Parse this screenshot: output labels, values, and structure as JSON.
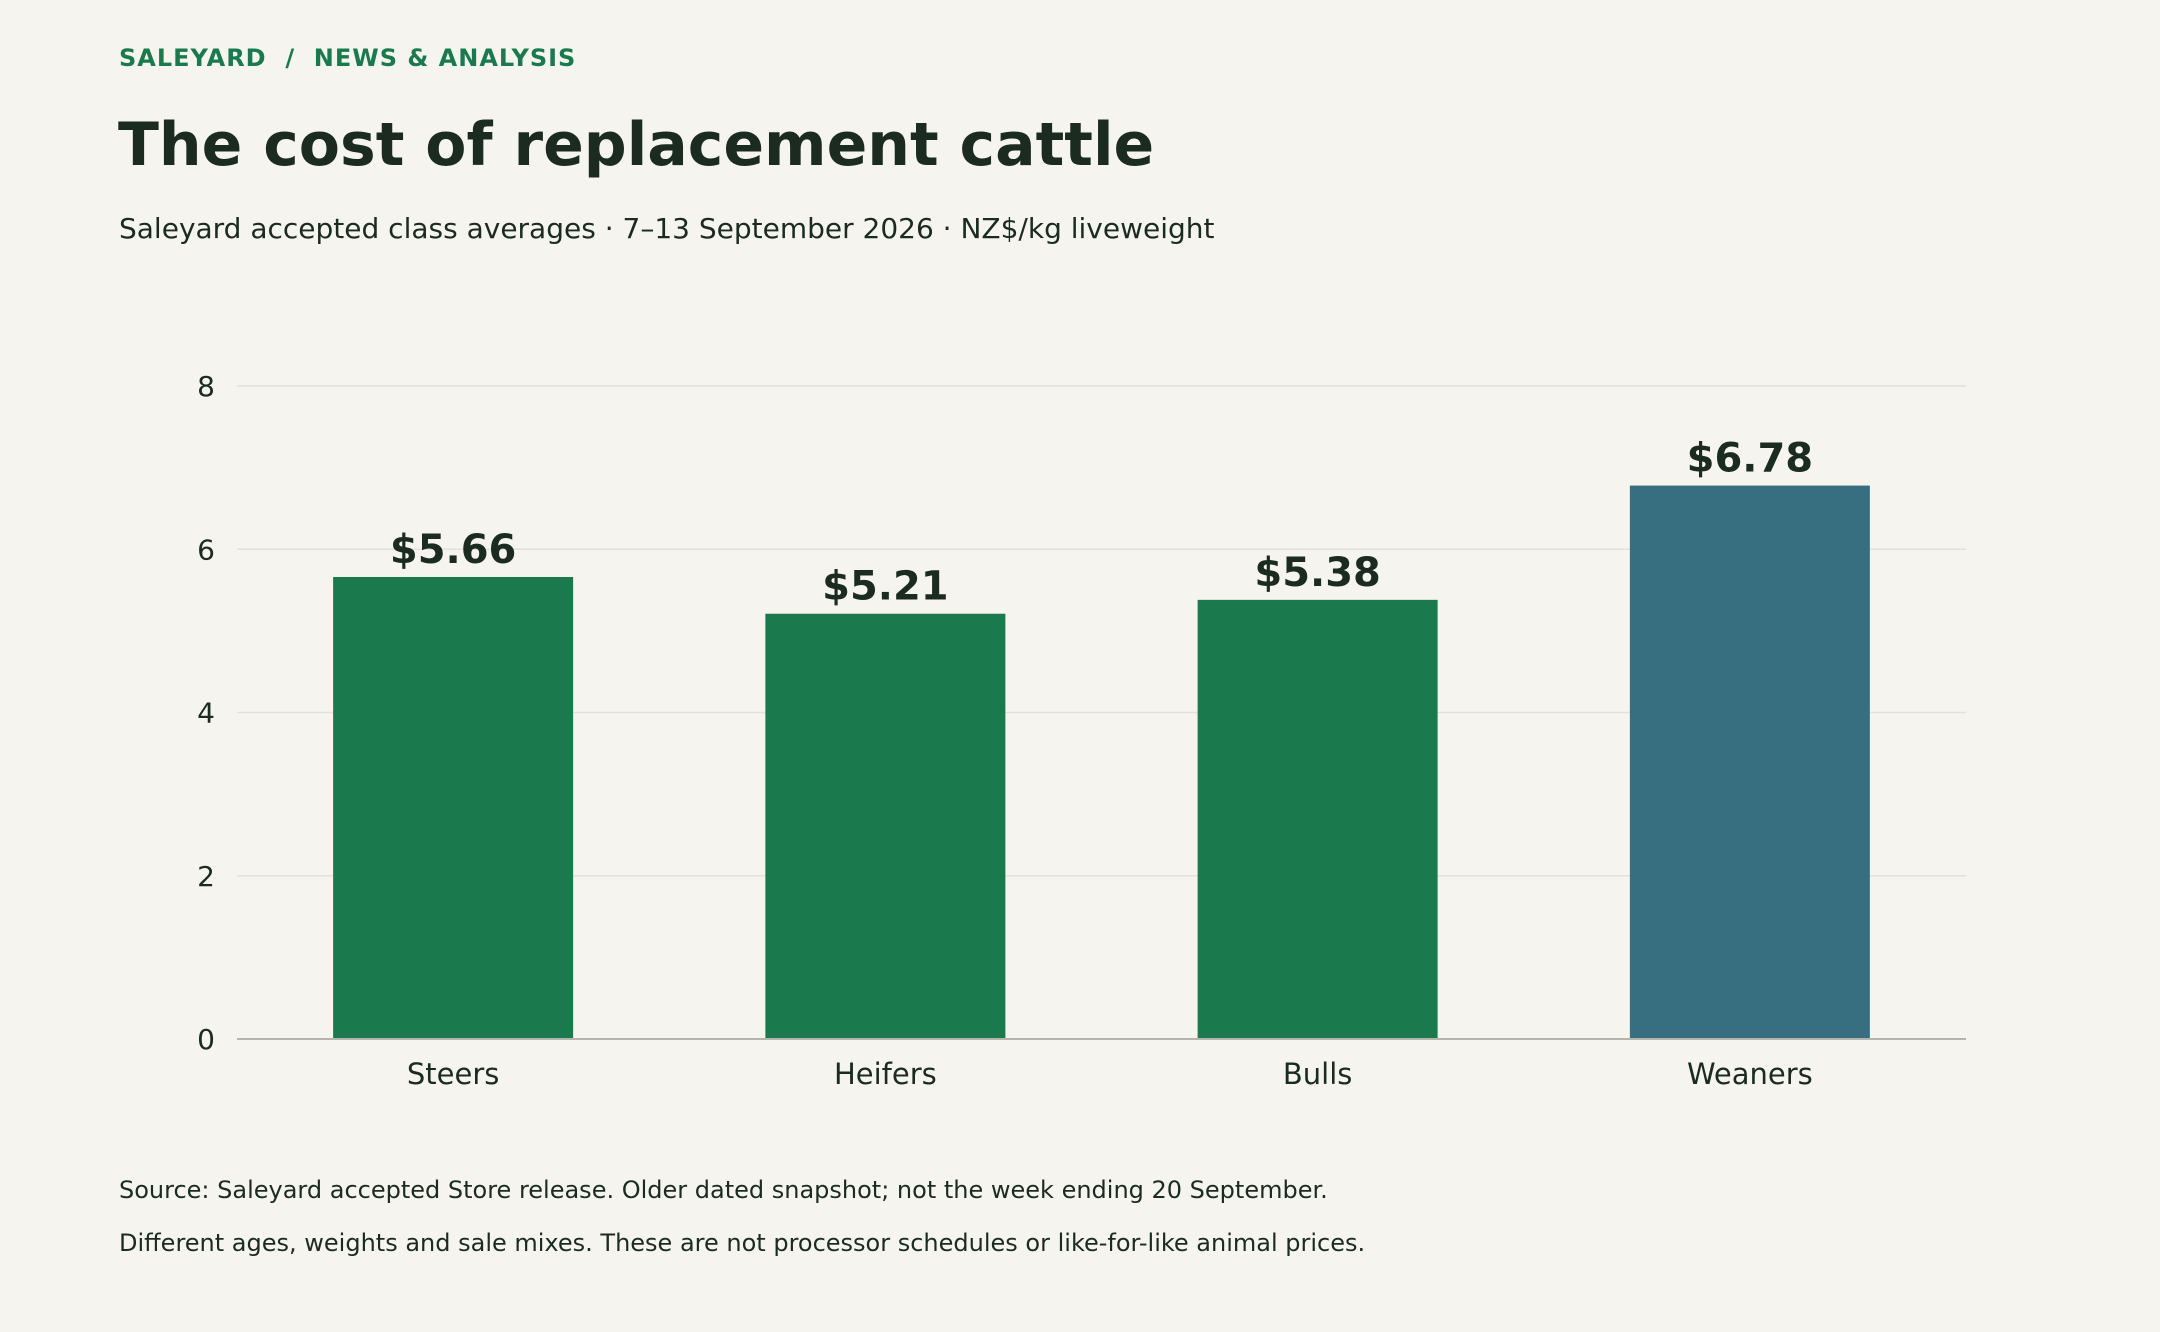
{
  "header": {
    "breadcrumb": "SALEYARD  /  NEWS & ANALYSIS",
    "title": "The cost of replacement cattle",
    "subtitle": "Saleyard accepted class averages · 7–13 September 2026 · NZ$/kg liveweight"
  },
  "footer": {
    "source": "Source: Saleyard accepted Store release. Older dated snapshot; not the week ending 20 September.",
    "caveat": "Different ages, weights and sale mixes. These are not processor schedules or like-for-like animal prices."
  },
  "chart_data": {
    "type": "bar",
    "categories": [
      "Steers",
      "Heifers",
      "Bulls",
      "Weaners"
    ],
    "values": [
      5.66,
      5.21,
      5.38,
      6.78
    ],
    "data_labels": [
      "$5.66",
      "$5.21",
      "$5.38",
      "$6.78"
    ],
    "bar_colors": [
      "#1a7a4e",
      "#1a7a4e",
      "#1a7a4e",
      "#376f80"
    ],
    "ylim": [
      0,
      8
    ],
    "yticks": [
      0,
      2,
      4,
      6,
      8
    ],
    "xlabel": "",
    "ylabel": "",
    "grid": true,
    "colors": {
      "primary": "#1a7a4e",
      "highlight": "#376f80",
      "gridline": "#e2e1dc",
      "axis": "#b5b5b0",
      "text": "#1b2b22"
    }
  }
}
